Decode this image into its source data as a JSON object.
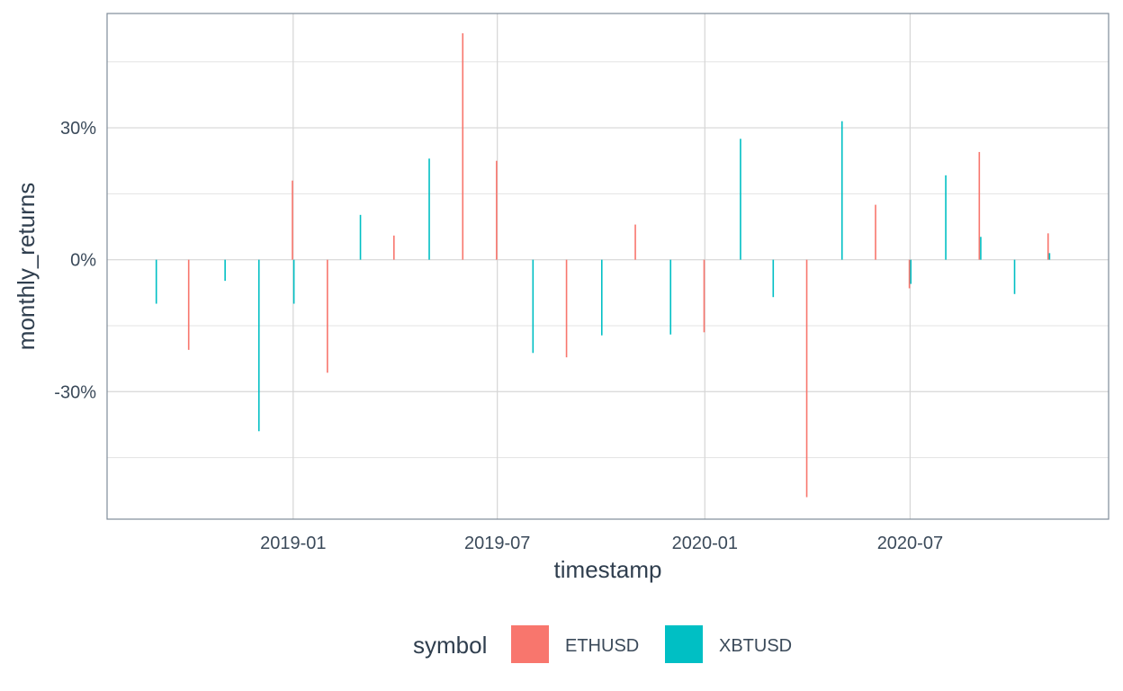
{
  "chart_data": {
    "type": "bar",
    "xlabel": "timestamp",
    "ylabel": "monthly_returns",
    "x_ticks": [
      "2019-01",
      "2019-07",
      "2020-01",
      "2020-07"
    ],
    "y_ticks": [
      "-30%",
      "0%",
      "30%"
    ],
    "y_tick_values": [
      -0.3,
      0.0,
      0.3
    ],
    "ylim": [
      -0.59,
      0.56
    ],
    "xlim": [
      "2018-07-20",
      "2020-12-24"
    ],
    "grid": true,
    "legend": {
      "title": "symbol",
      "position": "bottom"
    },
    "series": [
      {
        "name": "ETHUSD",
        "color": "#f8766d",
        "points": [
          {
            "x": "2018-10-01",
            "y": -0.205
          },
          {
            "x": "2019-01-01",
            "y": 0.18
          },
          {
            "x": "2019-02-01",
            "y": -0.257
          },
          {
            "x": "2019-04-01",
            "y": 0.055
          },
          {
            "x": "2019-06-01",
            "y": 0.515
          },
          {
            "x": "2019-07-01",
            "y": 0.225
          },
          {
            "x": "2019-09-01",
            "y": -0.222
          },
          {
            "x": "2019-11-01",
            "y": 0.08
          },
          {
            "x": "2020-01-01",
            "y": -0.165
          },
          {
            "x": "2020-04-01",
            "y": -0.54
          },
          {
            "x": "2020-06-01",
            "y": 0.125
          },
          {
            "x": "2020-07-01",
            "y": -0.065
          },
          {
            "x": "2020-09-01",
            "y": 0.245
          },
          {
            "x": "2020-11-01",
            "y": 0.06
          }
        ]
      },
      {
        "name": "XBTUSD",
        "color": "#00bfc4",
        "points": [
          {
            "x": "2018-09-01",
            "y": -0.1
          },
          {
            "x": "2018-11-01",
            "y": -0.048
          },
          {
            "x": "2018-12-01",
            "y": -0.39
          },
          {
            "x": "2019-01-01",
            "y": -0.1
          },
          {
            "x": "2019-03-01",
            "y": 0.102
          },
          {
            "x": "2019-05-01",
            "y": 0.23
          },
          {
            "x": "2019-08-01",
            "y": -0.212
          },
          {
            "x": "2019-10-01",
            "y": -0.172
          },
          {
            "x": "2019-12-01",
            "y": -0.17
          },
          {
            "x": "2020-02-01",
            "y": 0.275
          },
          {
            "x": "2020-03-01",
            "y": -0.085
          },
          {
            "x": "2020-05-01",
            "y": 0.315
          },
          {
            "x": "2020-07-01",
            "y": -0.055
          },
          {
            "x": "2020-08-01",
            "y": 0.192
          },
          {
            "x": "2020-09-01",
            "y": 0.052
          },
          {
            "x": "2020-10-01",
            "y": -0.078
          },
          {
            "x": "2020-11-01",
            "y": 0.015
          }
        ]
      }
    ]
  }
}
